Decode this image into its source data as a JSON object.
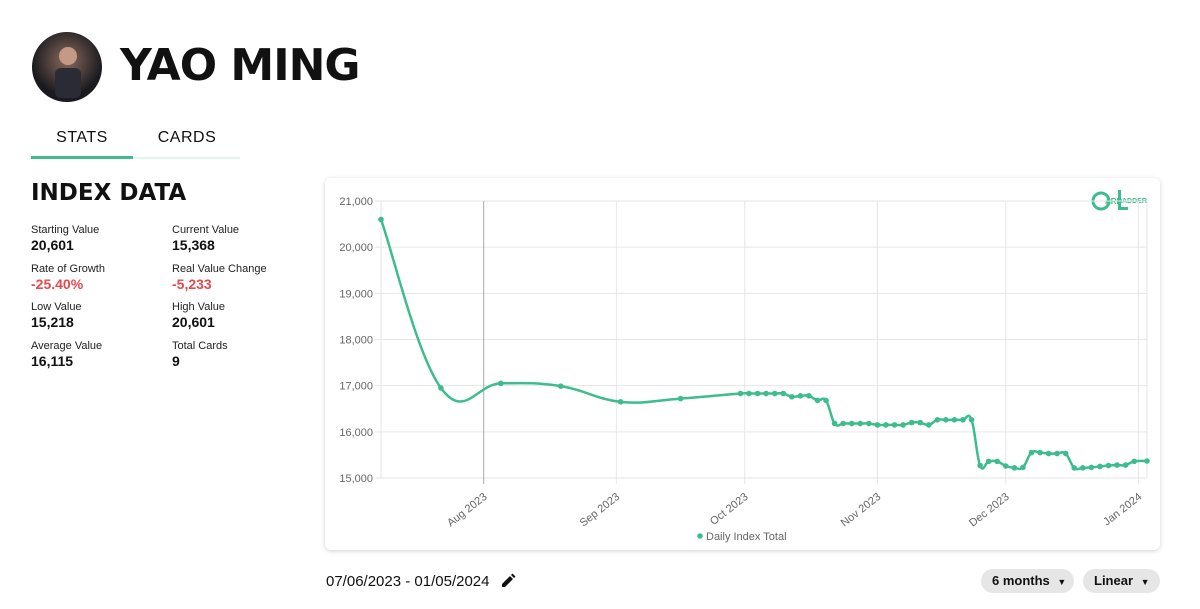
{
  "header": {
    "name": "YAO MING"
  },
  "tabs": [
    "STATS",
    "CARDS"
  ],
  "index_data": {
    "title": "INDEX DATA",
    "stats": [
      {
        "label": "Starting Value",
        "value": "20,601"
      },
      {
        "label": "Current Value",
        "value": "15,368"
      },
      {
        "label": "Rate of Growth",
        "value": "-25.40%"
      },
      {
        "label": "Real Value Change",
        "value": "-5,233"
      },
      {
        "label": "Low Value",
        "value": "15,218"
      },
      {
        "label": "High Value",
        "value": "20,601"
      },
      {
        "label": "Average Value",
        "value": "16,115"
      },
      {
        "label": "Total Cards",
        "value": "9"
      }
    ]
  },
  "logo": {
    "parts": [
      "ARD",
      "ADDER"
    ]
  },
  "chart_data": {
    "type": "line",
    "grid": true,
    "legend": "bottom",
    "xlim": [
      "2023-07-08",
      "2024-01-03"
    ],
    "xticks": [
      {
        "value": "2023-08-01",
        "label": "Aug 2023"
      },
      {
        "value": "2023-09-01",
        "label": "Sep 2023"
      },
      {
        "value": "2023-10-01",
        "label": "Oct 2023"
      },
      {
        "value": "2023-11-01",
        "label": "Nov 2023"
      },
      {
        "value": "2023-12-01",
        "label": "Dec 2023"
      },
      {
        "value": "2024-01-01",
        "label": "Jan 2024"
      }
    ],
    "ylim": [
      15000,
      21000
    ],
    "yticks": [
      {
        "value": 15000,
        "label": "15,000"
      },
      {
        "value": 16000,
        "label": "16,000"
      },
      {
        "value": 17000,
        "label": "17,000"
      },
      {
        "value": 18000,
        "label": "18,000"
      },
      {
        "value": 19000,
        "label": "19,000"
      },
      {
        "value": 20000,
        "label": "20,000"
      },
      {
        "value": 21000,
        "label": "21,000"
      }
    ],
    "x": [
      "2023-07-08",
      "2023-07-22",
      "2023-08-05",
      "2023-08-19",
      "2023-09-02",
      "2023-09-16",
      "2023-09-30",
      "2023-10-02",
      "2023-10-04",
      "2023-10-06",
      "2023-10-08",
      "2023-10-10",
      "2023-10-12",
      "2023-10-14",
      "2023-10-16",
      "2023-10-18",
      "2023-10-20",
      "2023-10-22",
      "2023-10-24",
      "2023-10-26",
      "2023-10-28",
      "2023-10-30",
      "2023-11-01",
      "2023-11-03",
      "2023-11-05",
      "2023-11-07",
      "2023-11-09",
      "2023-11-11",
      "2023-11-13",
      "2023-11-15",
      "2023-11-17",
      "2023-11-19",
      "2023-11-21",
      "2023-11-23",
      "2023-11-25",
      "2023-11-27",
      "2023-11-29",
      "2023-12-01",
      "2023-12-03",
      "2023-12-05",
      "2023-12-07",
      "2023-12-09",
      "2023-12-11",
      "2023-12-13",
      "2023-12-15",
      "2023-12-17",
      "2023-12-19",
      "2023-12-21",
      "2023-12-23",
      "2023-12-25",
      "2023-12-27",
      "2023-12-29",
      "2023-12-31",
      "2024-01-03"
    ],
    "series": [
      {
        "name": "Daily Index Total",
        "color": "#3dbd8d",
        "values": [
          20601,
          16950,
          17050,
          16990,
          16650,
          16720,
          16830,
          16830,
          16830,
          16830,
          16830,
          16830,
          16760,
          16780,
          16780,
          16680,
          16680,
          16180,
          16180,
          16180,
          16180,
          16180,
          16150,
          16150,
          16150,
          16150,
          16200,
          16200,
          16150,
          16260,
          16260,
          16260,
          16260,
          16260,
          15270,
          15360,
          15360,
          15260,
          15220,
          15230,
          15550,
          15550,
          15530,
          15530,
          15530,
          15218,
          15220,
          15230,
          15250,
          15270,
          15280,
          15280,
          15360,
          15368
        ]
      }
    ]
  },
  "controls": {
    "date_range": "07/06/2023 - 01/05/2024",
    "period": "6 months",
    "scale": "Linear"
  }
}
